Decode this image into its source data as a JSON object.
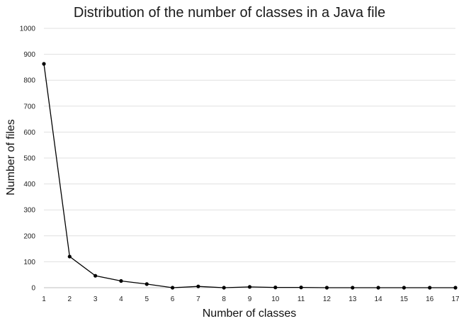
{
  "chart_data": {
    "type": "line",
    "title": "Distribution of the number of classes in a Java file",
    "xlabel": "Number of classes",
    "ylabel": "Number of files",
    "x": [
      1,
      2,
      3,
      4,
      5,
      6,
      7,
      8,
      9,
      10,
      11,
      12,
      13,
      14,
      15,
      16,
      17
    ],
    "x_tick_labels": [
      "1",
      "2",
      "3",
      "4",
      "5",
      "6",
      "7",
      "8",
      "9",
      "10",
      "11",
      "12",
      "13",
      "14",
      "15",
      "16",
      "17"
    ],
    "y_tick_labels": [
      "0",
      "100",
      "200",
      "300",
      "400",
      "500",
      "600",
      "700",
      "800",
      "900",
      "1000"
    ],
    "series": [
      {
        "values": [
          863,
          120,
          46,
          26,
          14,
          0,
          5,
          0,
          3,
          1,
          1,
          0,
          0,
          0,
          0,
          0,
          0
        ]
      }
    ],
    "ylim": [
      0,
      1000
    ],
    "xlim": [
      1,
      17
    ],
    "grid": true,
    "legend": "none",
    "line_color": "#000000",
    "grid_color": "#e0e0e0"
  }
}
